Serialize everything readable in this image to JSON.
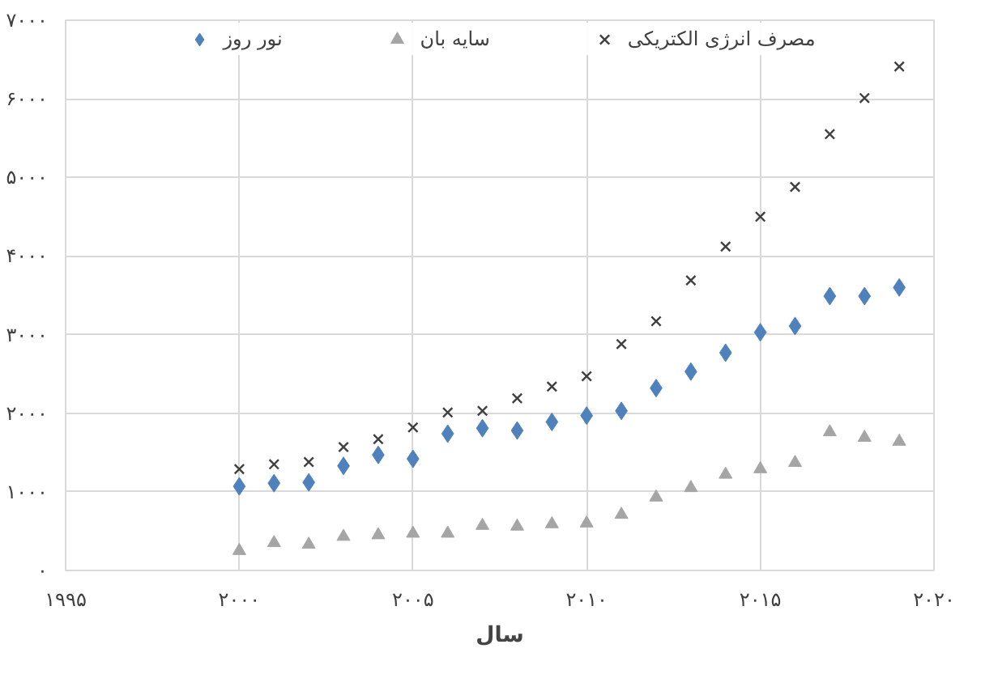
{
  "chart_data": {
    "type": "scatter",
    "xlabel": "سال",
    "x": [
      2000,
      2001,
      2002,
      2003,
      2004,
      2005,
      2006,
      2007,
      2008,
      2009,
      2010,
      2011,
      2012,
      2013,
      2014,
      2015,
      2016,
      2017,
      2018,
      2019
    ],
    "series": [
      {
        "name": "نور روز",
        "color": "#4f81bd",
        "marker": "diamond",
        "values": [
          1070,
          1110,
          1120,
          1330,
          1470,
          1420,
          1740,
          1810,
          1780,
          1890,
          1970,
          2030,
          2320,
          2530,
          2770,
          3030,
          3110,
          3490,
          3490,
          3600
        ]
      },
      {
        "name": "سایه بان",
        "color": "#a5a5a5",
        "marker": "triangle",
        "values": [
          250,
          350,
          330,
          430,
          450,
          470,
          470,
          570,
          560,
          590,
          600,
          710,
          930,
          1050,
          1220,
          1290,
          1370,
          1760,
          1690,
          1640
        ]
      },
      {
        "name": "مصرف انرژی الکتریکی",
        "color": "#404040",
        "marker": "cross",
        "values": [
          1290,
          1350,
          1380,
          1570,
          1670,
          1820,
          2010,
          2030,
          2190,
          2340,
          2470,
          2880,
          3170,
          3690,
          4120,
          4500,
          4880,
          5550,
          6010,
          6410
        ]
      }
    ],
    "xlim": [
      1995,
      2020
    ],
    "xticks": [
      {
        "value": 1995,
        "label": "۱۹۹۵"
      },
      {
        "value": 2000,
        "label": "۲۰۰۰"
      },
      {
        "value": 2005,
        "label": "۲۰۰۵"
      },
      {
        "value": 2010,
        "label": "۲۰۱۰"
      },
      {
        "value": 2015,
        "label": "۲۰۱۵"
      },
      {
        "value": 2020,
        "label": "۲۰۲۰"
      }
    ],
    "ylim": [
      0,
      7000
    ],
    "yticks": [
      {
        "value": 0,
        "label": "۰"
      },
      {
        "value": 1000,
        "label": "۱۰۰۰"
      },
      {
        "value": 2000,
        "label": "۲۰۰۰"
      },
      {
        "value": 3000,
        "label": "۳۰۰۰"
      },
      {
        "value": 4000,
        "label": "۴۰۰۰"
      },
      {
        "value": 5000,
        "label": "۵۰۰۰"
      },
      {
        "value": 6000,
        "label": "۶۰۰۰"
      },
      {
        "value": 7000,
        "label": "۷۰۰۰"
      }
    ],
    "grid": true,
    "legend": "top"
  }
}
